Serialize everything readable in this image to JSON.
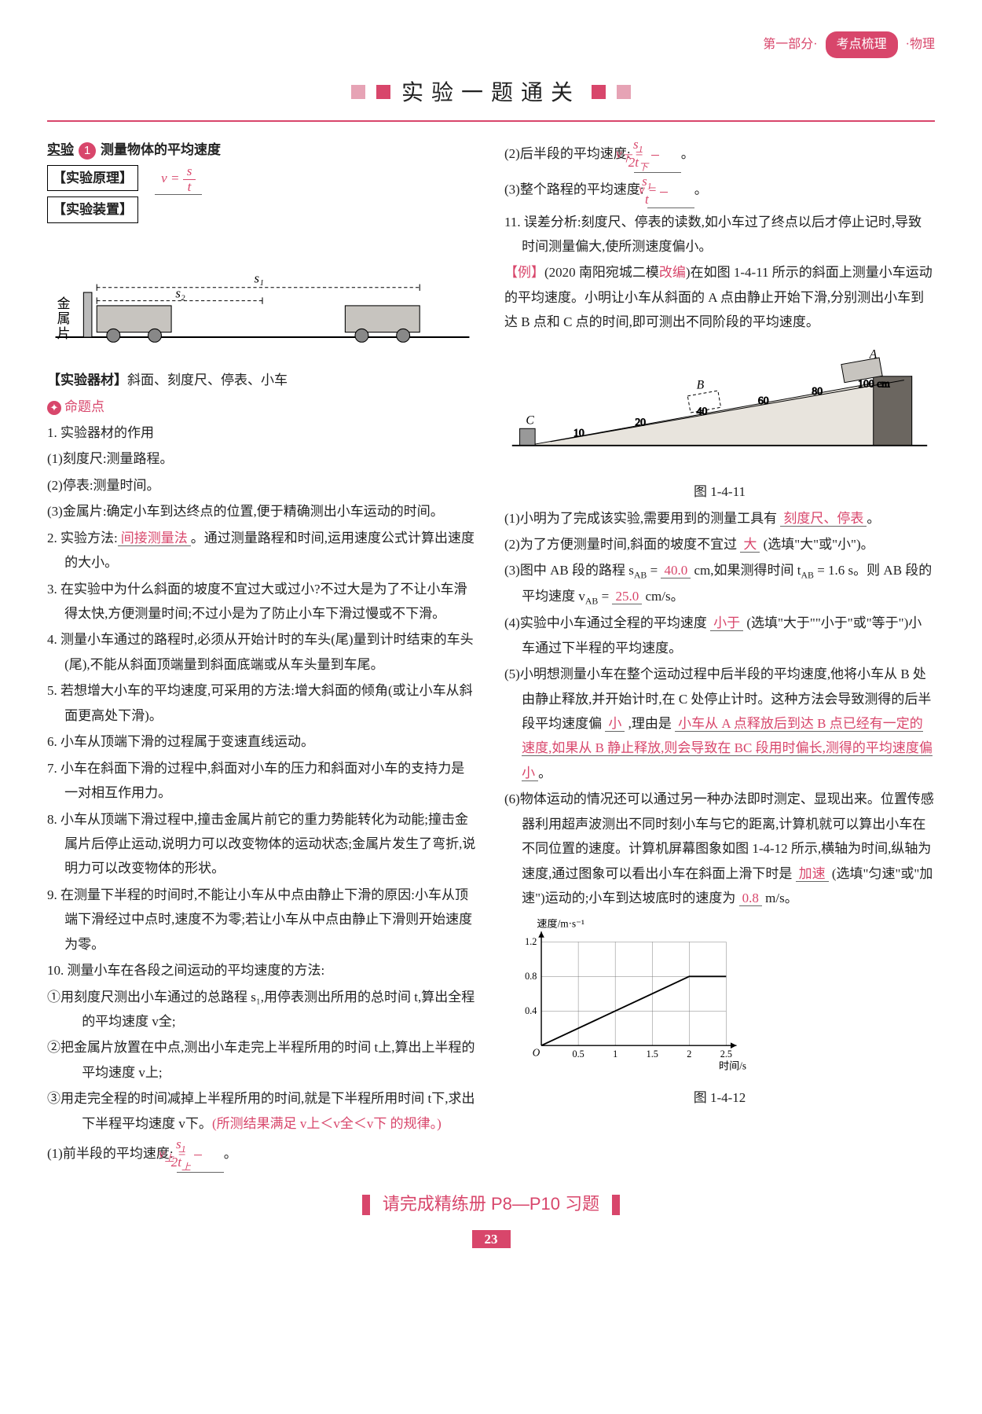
{
  "header": {
    "part": "第一部分·",
    "pill": "考点梳理",
    "subj": "·物理"
  },
  "title": "实验一题通关",
  "left": {
    "h1a": "实验",
    "h1n": "1",
    "h1b": "测量物体的平均速度",
    "p_label": "【实验原理】",
    "dev_label": "【实验装置】",
    "dev_metal": "金属片",
    "eq_label": "【实验器材】",
    "eq": "斜面、刻度尺、停表、小车",
    "pt_label": "命题点",
    "l1": "1. 实验器材的作用",
    "l1a": "(1)刻度尺:测量路程。",
    "l1b": "(2)停表:测量时间。",
    "l1c": "(3)金属片:确定小车到达终点的位置,便于精确测出小车运动的时间。",
    "l2a": "2. 实验方法:",
    "l2ans": "间接测量法",
    "l2b": "。通过测量路程和时间,运用速度公式计算出速度的大小。",
    "l3": "3. 在实验中为什么斜面的坡度不宜过大或过小?不过大是为了不让小车滑得太快,方便测量时间;不过小是为了防止小车下滑过慢或不下滑。",
    "l4": "4. 测量小车通过的路程时,必须从开始计时的车头(尾)量到计时结束的车头(尾),不能从斜面顶端量到斜面底端或从车头量到车尾。",
    "l5": "5. 若想增大小车的平均速度,可采用的方法:增大斜面的倾角(或让小车从斜面更高处下滑)。",
    "l6": "6. 小车从顶端下滑的过程属于变速直线运动。",
    "l7": "7. 小车在斜面下滑的过程中,斜面对小车的压力和斜面对小车的支持力是一对相互作用力。",
    "l8": "8. 小车从顶端下滑过程中,撞击金属片前它的重力势能转化为动能;撞击金属片后停止运动,说明力可以改变物体的运动状态;金属片发生了弯折,说明力可以改变物体的形状。",
    "l9": "9. 在测量下半程的时间时,不能让小车从中点由静止下滑的原因:小车从顶端下滑经过中点时,速度不为零;若让小车从中点由静止下滑则开始速度为零。",
    "l10": "10. 测量小车在各段之间运动的平均速度的方法:",
    "l10a": "①用刻度尺测出小车通过的总路程 s₁,用停表测出所用的总时间 t,算出全程的平均速度 v全;",
    "l10b": "②把金属片放置在中点,测出小车走完上半程所用的时间 t上,算出上半程的平均速度 v上;",
    "l10c_a": "③用走完全程的时间减掉上半程所用的时间,就是下半程所用时间 t下,求出下半程平均速度 v下。",
    "l10c_b": "(所测结果满足 v上＜v全＜v下 的规律。)",
    "l10_1": "(1)前半段的平均速度:"
  },
  "right": {
    "r2": "(2)后半段的平均速度:",
    "r3": "(3)整个路程的平均速度:",
    "l11": "11. 误差分析:刻度尺、停表的读数,如小车过了终点以后才停止记时,导致时间测量偏大,使所测速度偏小。",
    "ex_tag": "【例】",
    "ex_src": "(2020 南阳宛城二模",
    "ex_mod": "改编",
    "ex_a": ")在如图 1-4-11 所示的斜面上测量小车运动的平均速度。小明让小车从斜面的 A 点由静止开始下滑,分别测出小车到达 B 点和 C 点的时间,即可测出不同阶段的平均速度。",
    "fig1": "图 1-4-11",
    "q1a": "(1)小明为了完成该实验,需要用到的测量工具有",
    "q1ans": "刻度尺、停表",
    "q1b": "。",
    "q2a": "(2)为了方便测量时间,斜面的坡度不宜过",
    "q2ans": "大",
    "q2b": "(选填\"大\"或\"小\")。",
    "q3a": "(3)图中 AB 段的路程 s",
    "q3s": "AB",
    "q3b": " = ",
    "q3v1": "40.0",
    "q3c": " cm,如果测得时间 t",
    "q3d": " = 1.6 s。则 AB 段的平均速度 v",
    "q3e": " = ",
    "q3v2": "25.0",
    "q3f": " cm/s。",
    "q4a": "(4)实验中小车通过全程的平均速度",
    "q4ans": "小于",
    "q4b": "(选填\"大于\"\"小于\"或\"等于\")小车通过下半程的平均速度。",
    "q5a": "(5)小明想测量小车在整个运动过程中后半段的平均速度,他将小车从 B 处由静止释放,并开始计时,在 C 处停止计时。这种方法会导致测得的后半段平均速度偏",
    "q5ans1": "小",
    "q5b": ",理由是",
    "q5ans2": "小车从 A 点释放后到达 B 点已经有一定的速度,如果从 B 静止释放,则会导致在 BC 段用时偏长,测得的平均速度偏小",
    "q5c": "。",
    "q6a": "(6)物体运动的情况还可以通过另一种办法即时测定、显现出来。位置传感器利用超声波测出不同时刻小车与它的距离,计算机就可以算出小车在不同位置的速度。计算机屏幕图象如图 1-4-12 所示,横轴为时间,纵轴为速度,通过图象可以看出小车在斜面上滑下时是",
    "q6ans1": "加速",
    "q6b": "(选填\"匀速\"或\"加速\")运动的;小车到达坡底时的速度为",
    "q6ans2": "0.8",
    "q6c": " m/s。",
    "fig2": "图 1-4-12",
    "chart": {
      "ylabel": "速度/m·s⁻¹",
      "xlabel": "时间/s",
      "yticks": [
        0,
        0.4,
        0.8,
        1.2
      ],
      "xticks": [
        0,
        0.5,
        1.0,
        1.5,
        2.0,
        2.5
      ],
      "line": [
        [
          0,
          0
        ],
        [
          2.0,
          0.8
        ],
        [
          2.5,
          0.8
        ]
      ],
      "axis": "#000",
      "grid": "#777",
      "line_color": "#000",
      "bg": "#fff"
    }
  },
  "footer": "请完成精练册 P8—P10 习题",
  "pageno": "23"
}
